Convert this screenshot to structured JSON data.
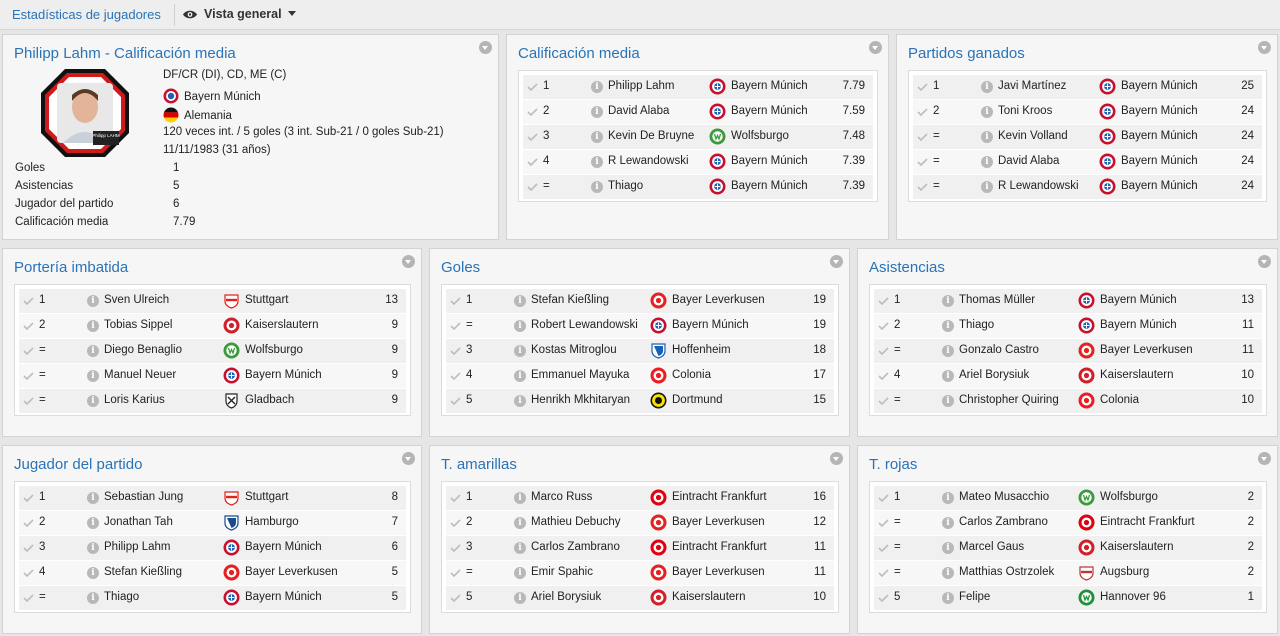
{
  "topbar": {
    "breadcrumb": "Estadísticas de jugadores",
    "view_label": "Vista general"
  },
  "profile": {
    "title": "Philipp Lahm - Calificación media",
    "photo_caption": "Philipp LAHM",
    "positions": "DF/CR (DI), CD, ME (C)",
    "club": "Bayern Múnich",
    "nation": "Alemania",
    "caps": "120 veces int. / 5 goles (3 int. Sub-21 / 0 goles Sub-21)",
    "dob": "11/11/1983 (31 años)",
    "stats": [
      {
        "label": "Goles",
        "value": "1"
      },
      {
        "label": "Asistencias",
        "value": "5"
      },
      {
        "label": "Jugador del partido",
        "value": "6"
      },
      {
        "label": "Calificación media",
        "value": "7.79"
      }
    ]
  },
  "colors": {
    "accent": "#2a73b7",
    "crest_bayern": "#c8102e",
    "crest_wolfsburg": "#3b9a3b",
    "crest_leverkusen": "#e32221",
    "crest_hoffenheim": "#1961b5",
    "crest_colonia": "#ed1c24",
    "crest_dortmund": "#fde100",
    "crest_gladbach": "#222222",
    "crest_stuttgart": "#e32219",
    "crest_kaiserslautern": "#d0202a",
    "crest_hamburgo": "#1a4c8c",
    "crest_frankfurt": "#e1000f",
    "crest_augsburg": "#ba3733",
    "crest_hannover": "#1f8f3a"
  },
  "panels": [
    {
      "id": "calificacion",
      "title": "Calificación media",
      "rows": [
        {
          "rank": "1",
          "player": "Philipp Lahm",
          "team": "Bayern Múnich",
          "crest": "bayern",
          "value": "7.79"
        },
        {
          "rank": "2",
          "player": "David Alaba",
          "team": "Bayern Múnich",
          "crest": "bayern",
          "value": "7.59"
        },
        {
          "rank": "3",
          "player": "Kevin De Bruyne",
          "team": "Wolfsburgo",
          "crest": "wolfsburg",
          "value": "7.48"
        },
        {
          "rank": "4",
          "player": "R Lewandowski",
          "team": "Bayern Múnich",
          "crest": "bayern",
          "value": "7.39"
        },
        {
          "rank": "=",
          "player": "Thiago",
          "team": "Bayern Múnich",
          "crest": "bayern",
          "value": "7.39"
        }
      ]
    },
    {
      "id": "ganados",
      "title": "Partidos ganados",
      "rows": [
        {
          "rank": "1",
          "player": "Javi Martínez",
          "team": "Bayern Múnich",
          "crest": "bayern",
          "value": "25"
        },
        {
          "rank": "2",
          "player": "Toni Kroos",
          "team": "Bayern Múnich",
          "crest": "bayern",
          "value": "24"
        },
        {
          "rank": "=",
          "player": "Kevin Volland",
          "team": "Bayern Múnich",
          "crest": "bayern",
          "value": "24"
        },
        {
          "rank": "=",
          "player": "David Alaba",
          "team": "Bayern Múnich",
          "crest": "bayern",
          "value": "24"
        },
        {
          "rank": "=",
          "player": "R Lewandowski",
          "team": "Bayern Múnich",
          "crest": "bayern",
          "value": "24"
        }
      ]
    },
    {
      "id": "imbatida",
      "title": "Portería imbatida",
      "rows": [
        {
          "rank": "1",
          "player": "Sven Ulreich",
          "team": "Stuttgart",
          "crest": "stuttgart",
          "value": "13"
        },
        {
          "rank": "2",
          "player": "Tobias Sippel",
          "team": "Kaiserslautern",
          "crest": "kaiserslautern",
          "value": "9"
        },
        {
          "rank": "=",
          "player": "Diego Benaglio",
          "team": "Wolfsburgo",
          "crest": "wolfsburg",
          "value": "9"
        },
        {
          "rank": "=",
          "player": "Manuel Neuer",
          "team": "Bayern Múnich",
          "crest": "bayern",
          "value": "9"
        },
        {
          "rank": "=",
          "player": "Loris Karius",
          "team": "Gladbach",
          "crest": "gladbach",
          "value": "9"
        }
      ]
    },
    {
      "id": "goles",
      "title": "Goles",
      "rows": [
        {
          "rank": "1",
          "player": "Stefan Kießling",
          "team": "Bayer Leverkusen",
          "crest": "leverkusen",
          "value": "19"
        },
        {
          "rank": "=",
          "player": "Robert Lewandowski",
          "team": "Bayern Múnich",
          "crest": "bayern",
          "value": "19"
        },
        {
          "rank": "3",
          "player": "Kostas Mitroglou",
          "team": "Hoffenheim",
          "crest": "hoffenheim",
          "value": "18"
        },
        {
          "rank": "4",
          "player": "Emmanuel Mayuka",
          "team": "Colonia",
          "crest": "colonia",
          "value": "17"
        },
        {
          "rank": "5",
          "player": "Henrikh Mkhitaryan",
          "team": "Dortmund",
          "crest": "dortmund",
          "value": "15"
        }
      ]
    },
    {
      "id": "asistencias",
      "title": "Asistencias",
      "rows": [
        {
          "rank": "1",
          "player": "Thomas Müller",
          "team": "Bayern Múnich",
          "crest": "bayern",
          "value": "13"
        },
        {
          "rank": "2",
          "player": "Thiago",
          "team": "Bayern Múnich",
          "crest": "bayern",
          "value": "11"
        },
        {
          "rank": "=",
          "player": "Gonzalo Castro",
          "team": "Bayer Leverkusen",
          "crest": "leverkusen",
          "value": "11"
        },
        {
          "rank": "4",
          "player": "Ariel Borysiuk",
          "team": "Kaiserslautern",
          "crest": "kaiserslautern",
          "value": "10"
        },
        {
          "rank": "=",
          "player": "Christopher Quiring",
          "team": "Colonia",
          "crest": "colonia",
          "value": "10"
        }
      ]
    },
    {
      "id": "jugador",
      "title": "Jugador del partido",
      "rows": [
        {
          "rank": "1",
          "player": "Sebastian Jung",
          "team": "Stuttgart",
          "crest": "stuttgart",
          "value": "8"
        },
        {
          "rank": "2",
          "player": "Jonathan Tah",
          "team": "Hamburgo",
          "crest": "hamburgo",
          "value": "7"
        },
        {
          "rank": "3",
          "player": "Philipp Lahm",
          "team": "Bayern Múnich",
          "crest": "bayern",
          "value": "6"
        },
        {
          "rank": "4",
          "player": "Stefan Kießling",
          "team": "Bayer Leverkusen",
          "crest": "leverkusen",
          "value": "5"
        },
        {
          "rank": "=",
          "player": "Thiago",
          "team": "Bayern Múnich",
          "crest": "bayern",
          "value": "5"
        }
      ]
    },
    {
      "id": "amarillas",
      "title": "T. amarillas",
      "rows": [
        {
          "rank": "1",
          "player": "Marco Russ",
          "team": "Eintracht Frankfurt",
          "crest": "frankfurt",
          "value": "16"
        },
        {
          "rank": "2",
          "player": "Mathieu Debuchy",
          "team": "Bayer Leverkusen",
          "crest": "leverkusen",
          "value": "12"
        },
        {
          "rank": "3",
          "player": "Carlos Zambrano",
          "team": "Eintracht Frankfurt",
          "crest": "frankfurt",
          "value": "11"
        },
        {
          "rank": "=",
          "player": "Emir Spahic",
          "team": "Bayer Leverkusen",
          "crest": "leverkusen",
          "value": "11"
        },
        {
          "rank": "5",
          "player": "Ariel Borysiuk",
          "team": "Kaiserslautern",
          "crest": "kaiserslautern",
          "value": "10"
        }
      ]
    },
    {
      "id": "rojas",
      "title": "T. rojas",
      "rows": [
        {
          "rank": "1",
          "player": "Mateo Musacchio",
          "team": "Wolfsburgo",
          "crest": "wolfsburg",
          "value": "2"
        },
        {
          "rank": "=",
          "player": "Carlos Zambrano",
          "team": "Eintracht Frankfurt",
          "crest": "frankfurt",
          "value": "2"
        },
        {
          "rank": "=",
          "player": "Marcel Gaus",
          "team": "Kaiserslautern",
          "crest": "kaiserslautern",
          "value": "2"
        },
        {
          "rank": "=",
          "player": "Matthias Ostrzolek",
          "team": "Augsburg",
          "crest": "augsburg",
          "value": "2"
        },
        {
          "rank": "5",
          "player": "Felipe",
          "team": "Hannover 96",
          "crest": "hannover",
          "value": "1"
        }
      ]
    }
  ]
}
